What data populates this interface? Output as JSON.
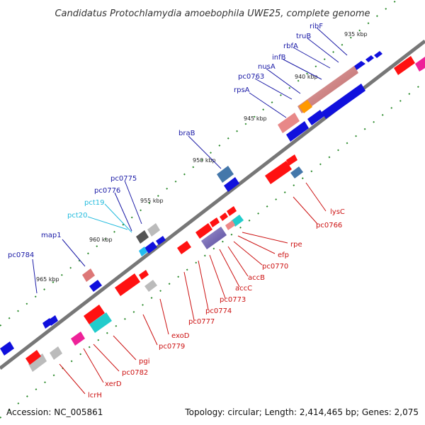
{
  "title": "Candidatus Protochlamydia amoebophila UWE25, complete genome",
  "footer": {
    "accession": "Accession: NC_005861",
    "topology": "Topology: circular; Length: 2,414,465 bp; Genes: 2,075"
  },
  "colors": {
    "plus_strand_label": "#1a1aa6",
    "minus_strand_label": "#cc1111",
    "rna_label": "#22bbdd",
    "backbone": "#777777",
    "tick_ruler": "#2a8a2a"
  },
  "kbp_labels": [
    "935 kbp",
    "940 kbp",
    "945 kbp",
    "950 kbp",
    "955 kbp",
    "960 kbp",
    "965 kbp"
  ],
  "genes_top": [
    "ribF",
    "truB",
    "rbfA",
    "infB",
    "nusA",
    "pc0763",
    "rpsA",
    "braB",
    "pc0775",
    "pc0776",
    "pct19",
    "pct20",
    "map1",
    "pc0784"
  ],
  "genes_bottom": [
    "lysC",
    "pc0766",
    "rpe",
    "efp",
    "pc0770",
    "accB",
    "accC",
    "pc0773",
    "pc0774",
    "pc0777",
    "exoD",
    "pc0779",
    "pgi",
    "pc0782",
    "xerD",
    "lcrH"
  ]
}
